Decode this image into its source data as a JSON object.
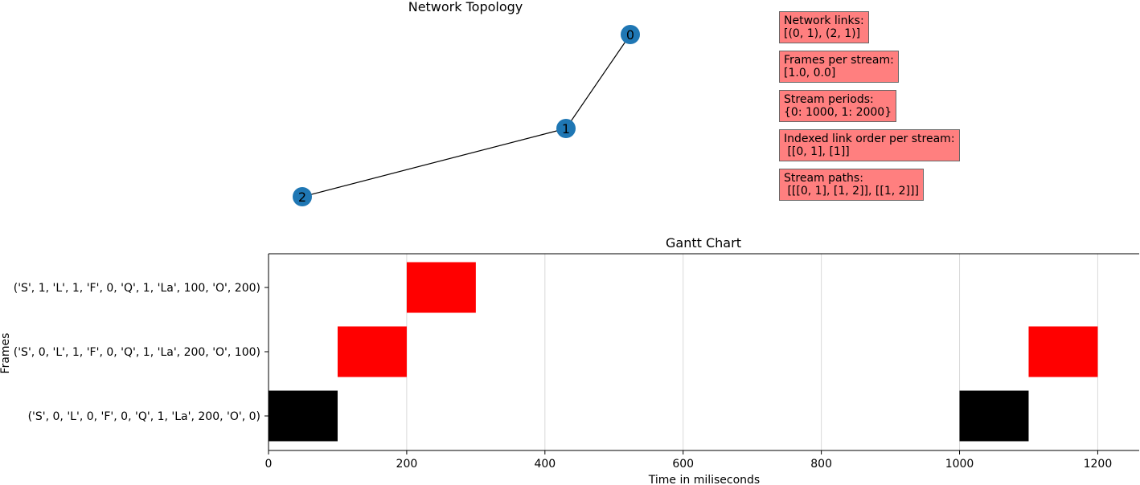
{
  "topology": {
    "title": "Network  Topology",
    "nodes": [
      {
        "id": "0"
      },
      {
        "id": "1"
      },
      {
        "id": "2"
      }
    ],
    "edges": [
      [
        "0",
        "1"
      ],
      [
        "1",
        "2"
      ]
    ],
    "node_color": "#1f77b4",
    "info_boxes": [
      {
        "label": "Network links:",
        "value": "[(0, 1), (2, 1)]"
      },
      {
        "label": "Frames per stream:",
        "value": "[1.0, 0.0]"
      },
      {
        "label": "Stream periods:",
        "value": "{0: 1000, 1: 2000}"
      },
      {
        "label": "Indexed link order per stream:",
        "value": " [[0, 1], [1]]"
      },
      {
        "label": "Stream paths:",
        "value": " [[[0, 1], [1, 2]], [[1, 2]]]"
      }
    ],
    "info_color": "#ff7f7f"
  },
  "chart_data": {
    "type": "gantt",
    "title": "Gantt Chart",
    "xlabel": "Time in miliseconds",
    "ylabel": "Frames",
    "xlim": [
      0,
      1260
    ],
    "xticks": [
      0,
      200,
      400,
      600,
      800,
      1000,
      1200
    ],
    "grid": "vertical",
    "categories": [
      "('S', 0, 'L', 0, 'F', 0, 'Q', 1, 'La', 200, 'O', 0)",
      "('S', 0, 'L', 1, 'F', 0, 'Q', 1, 'La', 200, 'O', 100)",
      "('S', 1, 'L', 1, 'F', 0, 'Q', 1, 'La', 100, 'O', 200)"
    ],
    "bars": [
      {
        "row": 0,
        "start": 0,
        "end": 100,
        "color": "#000000"
      },
      {
        "row": 0,
        "start": 1000,
        "end": 1100,
        "color": "#000000"
      },
      {
        "row": 1,
        "start": 100,
        "end": 200,
        "color": "#ff0000"
      },
      {
        "row": 1,
        "start": 1100,
        "end": 1200,
        "color": "#ff0000"
      },
      {
        "row": 2,
        "start": 200,
        "end": 300,
        "color": "#ff0000"
      }
    ]
  }
}
